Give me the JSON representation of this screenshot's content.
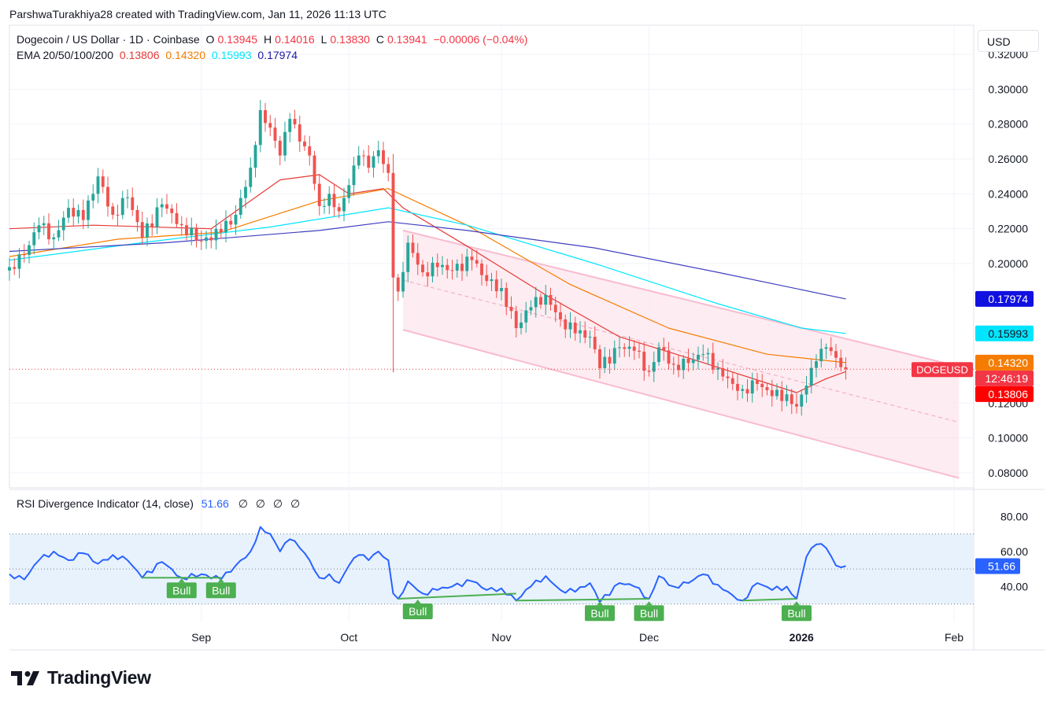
{
  "credit": "ParshwaTurakhiya28 created with TradingView.com, Jan 11, 2026 11:13 UTC",
  "currency_button": "USD",
  "legend": {
    "symbol": "Dogecoin / US Dollar · 1D · Coinbase",
    "open_label": "O",
    "open": "0.13945",
    "high_label": "H",
    "high": "0.14016",
    "low_label": "L",
    "low": "0.13830",
    "close_label": "C",
    "close": "0.13941",
    "change": "−0.00006 (−0.04%)",
    "ema_title": "EMA 20/50/100/200",
    "ema20": "0.13806",
    "ema50": "0.14320",
    "ema100": "0.15993",
    "ema200": "0.17974"
  },
  "rsi_legend": {
    "title": "RSI Divergence Indicator (14, close)",
    "value": "51.66",
    "placeholders": [
      "∅",
      "∅",
      "∅",
      "∅"
    ]
  },
  "logo_text": "TradingView",
  "colors": {
    "up": "#26a69a",
    "down": "#ef5350",
    "ema20": "#e53935",
    "ema50": "#f57c00",
    "ema100": "#00e5ff",
    "ema200": "#3f3fbf",
    "rsi": "#2962ff",
    "channel": "#f8bbd0",
    "bull": "#4caf50"
  },
  "chart_data": [
    {
      "type": "candlestick",
      "title": "Dogecoin / US Dollar · 1D · Coinbase",
      "ylim": [
        0.075,
        0.325
      ],
      "y_ticks": [
        "0.32000",
        "0.30000",
        "0.28000",
        "0.26000",
        "0.24000",
        "0.22000",
        "0.20000",
        "0.12000",
        "0.10000",
        "0.08000"
      ],
      "x_ticks": [
        {
          "label": "Sep",
          "date": "2025-09-01",
          "bold": false
        },
        {
          "label": "Oct",
          "date": "2025-10-01",
          "bold": false
        },
        {
          "label": "Nov",
          "date": "2025-11-01",
          "bold": false
        },
        {
          "label": "Dec",
          "date": "2025-12-01",
          "bold": false
        },
        {
          "label": "2026",
          "date": "2026-01-01",
          "bold": true
        },
        {
          "label": "Feb",
          "date": "2026-02-01",
          "bold": false
        }
      ],
      "x_range": [
        "2025-07-24",
        "2026-02-05"
      ],
      "close_anchors": [
        [
          "2025-07-24",
          0.198
        ],
        [
          "2025-07-27",
          0.205
        ],
        [
          "2025-07-30",
          0.222
        ],
        [
          "2025-08-02",
          0.215
        ],
        [
          "2025-08-05",
          0.232
        ],
        [
          "2025-08-08",
          0.225
        ],
        [
          "2025-08-11",
          0.25
        ],
        [
          "2025-08-14",
          0.228
        ],
        [
          "2025-08-17",
          0.238
        ],
        [
          "2025-08-20",
          0.215
        ],
        [
          "2025-08-24",
          0.234
        ],
        [
          "2025-08-28",
          0.222
        ],
        [
          "2025-09-01",
          0.213
        ],
        [
          "2025-09-05",
          0.218
        ],
        [
          "2025-09-08",
          0.228
        ],
        [
          "2025-09-11",
          0.255
        ],
        [
          "2025-09-13",
          0.288
        ],
        [
          "2025-09-15",
          0.278
        ],
        [
          "2025-09-17",
          0.262
        ],
        [
          "2025-09-19",
          0.283
        ],
        [
          "2025-09-21",
          0.27
        ],
        [
          "2025-09-23",
          0.262
        ],
        [
          "2025-09-25",
          0.233
        ],
        [
          "2025-09-27",
          0.24
        ],
        [
          "2025-09-29",
          0.23
        ],
        [
          "2025-10-01",
          0.245
        ],
        [
          "2025-10-03",
          0.262
        ],
        [
          "2025-10-05",
          0.255
        ],
        [
          "2025-10-07",
          0.265
        ],
        [
          "2025-10-09",
          0.252
        ],
        [
          "2025-10-10",
          0.192
        ],
        [
          "2025-10-11",
          0.184
        ],
        [
          "2025-10-13",
          0.212
        ],
        [
          "2025-10-16",
          0.195
        ],
        [
          "2025-10-19",
          0.198
        ],
        [
          "2025-10-22",
          0.196
        ],
        [
          "2025-10-26",
          0.202
        ],
        [
          "2025-10-29",
          0.19
        ],
        [
          "2025-11-01",
          0.186
        ],
        [
          "2025-11-04",
          0.163
        ],
        [
          "2025-11-07",
          0.175
        ],
        [
          "2025-11-10",
          0.182
        ],
        [
          "2025-11-13",
          0.168
        ],
        [
          "2025-11-16",
          0.16
        ],
        [
          "2025-11-19",
          0.158
        ],
        [
          "2025-11-21",
          0.14
        ],
        [
          "2025-11-25",
          0.152
        ],
        [
          "2025-11-28",
          0.15
        ],
        [
          "2025-12-01",
          0.138
        ],
        [
          "2025-12-03",
          0.152
        ],
        [
          "2025-12-06",
          0.142
        ],
        [
          "2025-12-09",
          0.143
        ],
        [
          "2025-12-12",
          0.148
        ],
        [
          "2025-12-15",
          0.14
        ],
        [
          "2025-12-18",
          0.131
        ],
        [
          "2025-12-20",
          0.128
        ],
        [
          "2025-12-23",
          0.131
        ],
        [
          "2025-12-26",
          0.124
        ],
        [
          "2025-12-29",
          0.125
        ],
        [
          "2025-12-31",
          0.118
        ],
        [
          "2026-01-02",
          0.13
        ],
        [
          "2026-01-04",
          0.144
        ],
        [
          "2026-01-06",
          0.152
        ],
        [
          "2026-01-08",
          0.146
        ],
        [
          "2026-01-10",
          0.1394
        ]
      ],
      "ema_series": [
        {
          "name": "EMA 20",
          "value": 0.13806,
          "points": [
            [
              "2025-07-24",
              0.22
            ],
            [
              "2025-08-10",
              0.222
            ],
            [
              "2025-09-03",
              0.22
            ],
            [
              "2025-09-17",
              0.248
            ],
            [
              "2025-09-25",
              0.251
            ],
            [
              "2025-10-01",
              0.24
            ],
            [
              "2025-10-08",
              0.243
            ],
            [
              "2025-10-12",
              0.232
            ],
            [
              "2025-10-25",
              0.21
            ],
            [
              "2025-11-10",
              0.182
            ],
            [
              "2025-11-25",
              0.158
            ],
            [
              "2025-12-10",
              0.145
            ],
            [
              "2025-12-31",
              0.126
            ],
            [
              "2026-01-06",
              0.134
            ],
            [
              "2026-01-10",
              0.13806
            ]
          ]
        },
        {
          "name": "EMA 50",
          "value": 0.1432,
          "points": [
            [
              "2025-07-24",
              0.204
            ],
            [
              "2025-08-15",
              0.214
            ],
            [
              "2025-09-05",
              0.218
            ],
            [
              "2025-09-25",
              0.236
            ],
            [
              "2025-10-09",
              0.243
            ],
            [
              "2025-10-25",
              0.222
            ],
            [
              "2025-11-15",
              0.188
            ],
            [
              "2025-12-05",
              0.163
            ],
            [
              "2025-12-25",
              0.148
            ],
            [
              "2026-01-10",
              0.1432
            ]
          ]
        },
        {
          "name": "EMA 100",
          "value": 0.15993,
          "points": [
            [
              "2025-07-24",
              0.202
            ],
            [
              "2025-08-20",
              0.212
            ],
            [
              "2025-09-15",
              0.221
            ],
            [
              "2025-10-09",
              0.232
            ],
            [
              "2025-10-25",
              0.222
            ],
            [
              "2025-11-20",
              0.2
            ],
            [
              "2025-12-15",
              0.177
            ],
            [
              "2026-01-01",
              0.163
            ],
            [
              "2026-01-10",
              0.15993
            ]
          ]
        },
        {
          "name": "EMA 200",
          "value": 0.17974,
          "points": [
            [
              "2025-07-24",
              0.207
            ],
            [
              "2025-08-25",
              0.212
            ],
            [
              "2025-09-25",
              0.219
            ],
            [
              "2025-10-09",
              0.224
            ],
            [
              "2025-10-25",
              0.219
            ],
            [
              "2025-11-20",
              0.209
            ],
            [
              "2025-12-15",
              0.195
            ],
            [
              "2026-01-10",
              0.17974
            ]
          ]
        }
      ],
      "channel": {
        "start_date": "2025-10-12",
        "end_date": "2026-02-02",
        "upper": [
          0.219,
          0.141
        ],
        "lower": [
          0.162,
          0.077
        ],
        "mid": [
          0.1905,
          0.109
        ]
      },
      "price_line": 0.13941,
      "price_labels": [
        {
          "text": "0.17974",
          "value": 0.17974,
          "color": "#1010e0",
          "fg": "#ffffff"
        },
        {
          "text": "0.15993",
          "value": 0.15993,
          "color": "#00e5ff",
          "fg": "#131722"
        },
        {
          "text": "0.14320",
          "value": 0.1432,
          "color": "#f57c00",
          "fg": "#ffffff"
        },
        {
          "text": "12:46:19",
          "value": 0.13941,
          "color": "#f23645",
          "fg": "#ffffff"
        },
        {
          "text": "0.13806",
          "value": 0.13806,
          "color": "#ff0000",
          "fg": "#ffffff"
        }
      ],
      "symbol_tag": "DOGEUSD"
    },
    {
      "type": "line",
      "title": "RSI Divergence Indicator (14, close)",
      "ylim": [
        20,
        90
      ],
      "y_ticks": [
        "80.00",
        "60.00",
        "40.00"
      ],
      "bands": [
        30,
        70
      ],
      "mid_line": 50,
      "current": 51.66,
      "values": [
        [
          "2025-07-24",
          47
        ],
        [
          "2025-07-27",
          44
        ],
        [
          "2025-07-30",
          55
        ],
        [
          "2025-08-02",
          60
        ],
        [
          "2025-08-05",
          55
        ],
        [
          "2025-08-08",
          59
        ],
        [
          "2025-08-11",
          53
        ],
        [
          "2025-08-14",
          58
        ],
        [
          "2025-08-17",
          55
        ],
        [
          "2025-08-20",
          45
        ],
        [
          "2025-08-24",
          54
        ],
        [
          "2025-08-28",
          45
        ],
        [
          "2025-09-01",
          47
        ],
        [
          "2025-09-05",
          44
        ],
        [
          "2025-09-08",
          52
        ],
        [
          "2025-09-11",
          60
        ],
        [
          "2025-09-13",
          74
        ],
        [
          "2025-09-15",
          70
        ],
        [
          "2025-09-17",
          60
        ],
        [
          "2025-09-19",
          67
        ],
        [
          "2025-09-21",
          62
        ],
        [
          "2025-09-23",
          55
        ],
        [
          "2025-09-25",
          45
        ],
        [
          "2025-09-27",
          47
        ],
        [
          "2025-09-29",
          42
        ],
        [
          "2025-10-01",
          52
        ],
        [
          "2025-10-03",
          58
        ],
        [
          "2025-10-05",
          55
        ],
        [
          "2025-10-07",
          60
        ],
        [
          "2025-10-09",
          55
        ],
        [
          "2025-10-10",
          36
        ],
        [
          "2025-10-11",
          33
        ],
        [
          "2025-10-13",
          43
        ],
        [
          "2025-10-16",
          36
        ],
        [
          "2025-10-19",
          38
        ],
        [
          "2025-10-22",
          40
        ],
        [
          "2025-10-26",
          43
        ],
        [
          "2025-10-29",
          38
        ],
        [
          "2025-11-01",
          39
        ],
        [
          "2025-11-04",
          32
        ],
        [
          "2025-11-07",
          40
        ],
        [
          "2025-11-10",
          46
        ],
        [
          "2025-11-13",
          38
        ],
        [
          "2025-11-16",
          37
        ],
        [
          "2025-11-19",
          42
        ],
        [
          "2025-11-21",
          31
        ],
        [
          "2025-11-25",
          42
        ],
        [
          "2025-11-28",
          40
        ],
        [
          "2025-12-01",
          33
        ],
        [
          "2025-12-03",
          46
        ],
        [
          "2025-12-06",
          40
        ],
        [
          "2025-12-09",
          42
        ],
        [
          "2025-12-12",
          47
        ],
        [
          "2025-12-15",
          41
        ],
        [
          "2025-12-18",
          35
        ],
        [
          "2025-12-20",
          32
        ],
        [
          "2025-12-23",
          42
        ],
        [
          "2025-12-26",
          38
        ],
        [
          "2025-12-29",
          40
        ],
        [
          "2025-12-31",
          33
        ],
        [
          "2026-01-02",
          57
        ],
        [
          "2026-01-04",
          64
        ],
        [
          "2026-01-06",
          62
        ],
        [
          "2026-01-08",
          52
        ],
        [
          "2026-01-10",
          51.66
        ]
      ],
      "divergence_lines": [
        {
          "from": [
            "2025-08-20",
            45
          ],
          "to": [
            "2025-09-05",
            45
          ],
          "labels": [
            {
              "text": "Bull",
              "date": "2025-08-28"
            },
            {
              "text": "Bull",
              "date": "2025-09-05"
            }
          ]
        },
        {
          "from": [
            "2025-10-11",
            33
          ],
          "to": [
            "2025-11-04",
            36
          ],
          "labels": [
            {
              "text": "Bull",
              "date": "2025-10-15"
            }
          ]
        },
        {
          "from": [
            "2025-11-04",
            32
          ],
          "to": [
            "2025-12-01",
            33
          ],
          "labels": [
            {
              "text": "Bull",
              "date": "2025-11-21"
            },
            {
              "text": "Bull",
              "date": "2025-12-01"
            }
          ]
        },
        {
          "from": [
            "2025-12-20",
            32
          ],
          "to": [
            "2025-12-31",
            33
          ],
          "labels": [
            {
              "text": "Bull",
              "date": "2025-12-31"
            }
          ]
        }
      ]
    }
  ]
}
